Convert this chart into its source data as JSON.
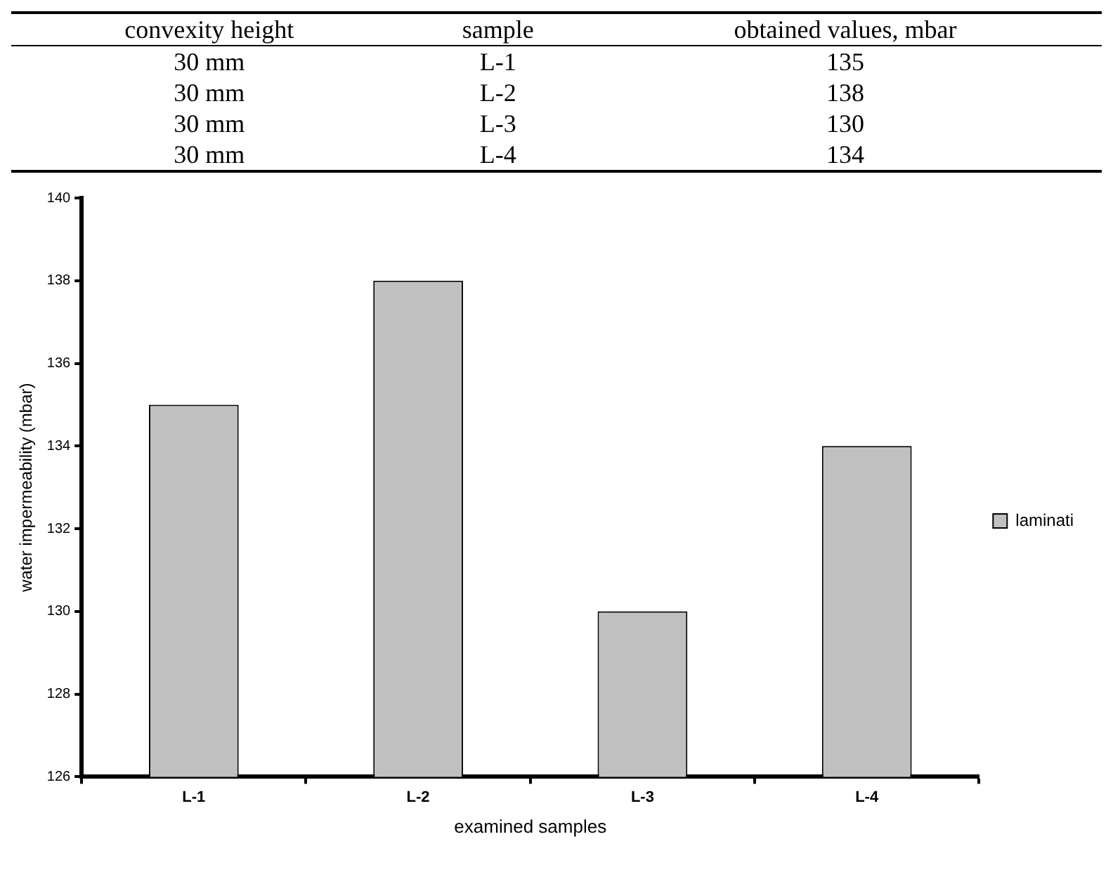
{
  "chart_data": {
    "type": "bar",
    "xlabel": "examined samples",
    "ylabel": "water impermeability (mbar)",
    "categories": [
      "L-1",
      "L-2",
      "L-3",
      "L-4"
    ],
    "series": [
      {
        "name": "laminati",
        "color": "#c0c0c0",
        "values": [
          135,
          138,
          130,
          134
        ]
      }
    ],
    "ylim": [
      126,
      140
    ],
    "yticks": [
      126,
      128,
      130,
      132,
      134,
      136,
      138,
      140
    ],
    "grid": false,
    "legend": "right",
    "annotations": [
      "convexity height",
      "sample",
      "obtained values, mbar",
      "30 mm",
      "L-1",
      "135",
      "30 mm",
      "L-2",
      "138",
      "30 mm",
      "L-3",
      "130",
      "30 mm",
      "L-4",
      "134"
    ]
  }
}
